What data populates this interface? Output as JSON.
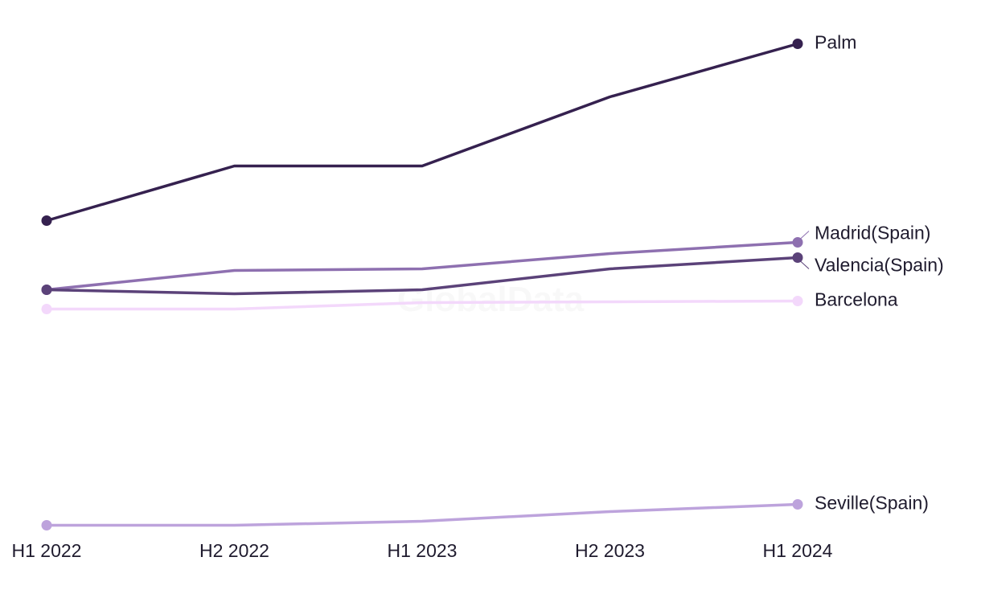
{
  "watermark": "GlobalData",
  "chart_data": {
    "type": "line",
    "categories": [
      "H1 2022",
      "H2 2022",
      "H1 2023",
      "H2 2023",
      "H1 2024"
    ],
    "series": [
      {
        "name": "Palm",
        "color": "#35214f",
        "values": [
          380,
          448,
          448,
          534,
          600
        ]
      },
      {
        "name": "Madrid(Spain)",
        "color": "#8e70b0",
        "values": [
          294,
          318,
          320,
          339,
          353
        ]
      },
      {
        "name": "Valencia(Spain)",
        "color": "#5b4279",
        "values": [
          294,
          289,
          294,
          320,
          334
        ]
      },
      {
        "name": "Barcelona",
        "color": "#f3d8fb",
        "values": [
          270,
          270,
          278,
          279,
          280
        ]
      },
      {
        "name": "Seville(Spain)",
        "color": "#bda3dc",
        "values": [
          1,
          1,
          6,
          18,
          27
        ]
      }
    ],
    "legend": "inline-right",
    "grid": false
  }
}
